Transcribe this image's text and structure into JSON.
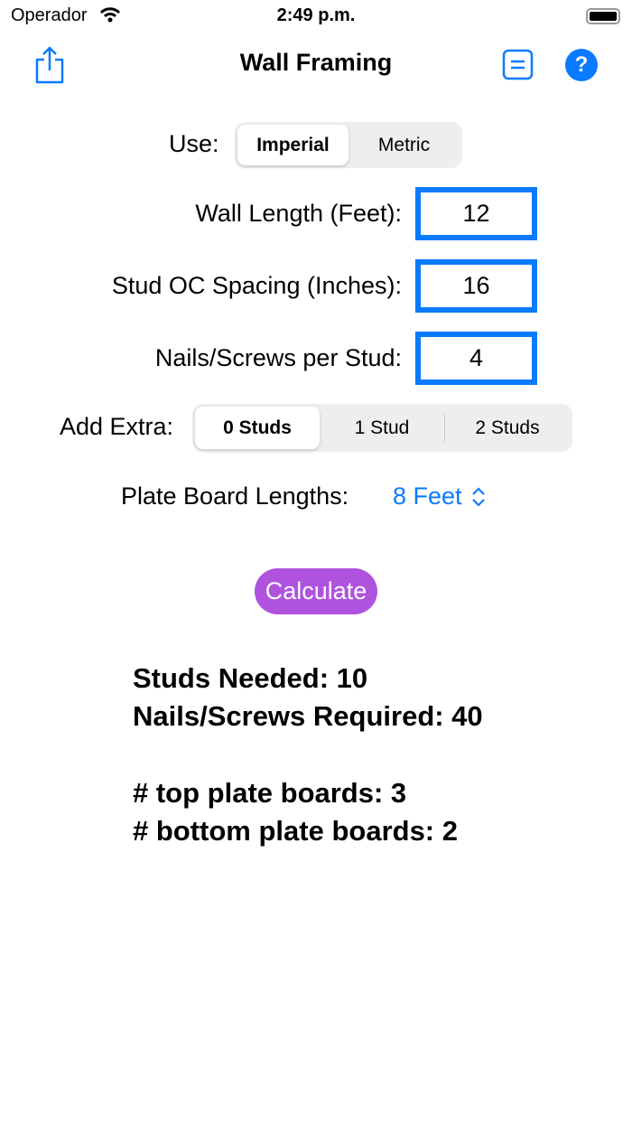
{
  "status_bar": {
    "carrier": "Operador",
    "time": "2:49 p.m."
  },
  "nav": {
    "title": "Wall Framing"
  },
  "form": {
    "use_label": "Use:",
    "units": [
      "Imperial",
      "Metric"
    ],
    "units_selected": "Imperial",
    "wall_length_label": "Wall Length (Feet):",
    "wall_length": "12",
    "spacing_label": "Stud OC Spacing (Inches):",
    "spacing": "16",
    "nails_label": "Nails/Screws per Stud:",
    "nails": "4",
    "extra_label": "Add Extra:",
    "extra_options": [
      "0 Studs",
      "1 Stud",
      "2 Studs"
    ],
    "extra_selected": "0 Studs",
    "plate_label": "Plate Board Lengths:",
    "plate_value": "8 Feet",
    "calculate": "Calculate"
  },
  "results": {
    "studs": "Studs Needed: 10",
    "nails": "Nails/Screws Required: 40",
    "top_plate": "# top plate boards: 3",
    "bottom_plate": "# bottom plate boards: 2"
  },
  "colors": {
    "accent": "#0a7aff",
    "calculate": "#af52de"
  }
}
